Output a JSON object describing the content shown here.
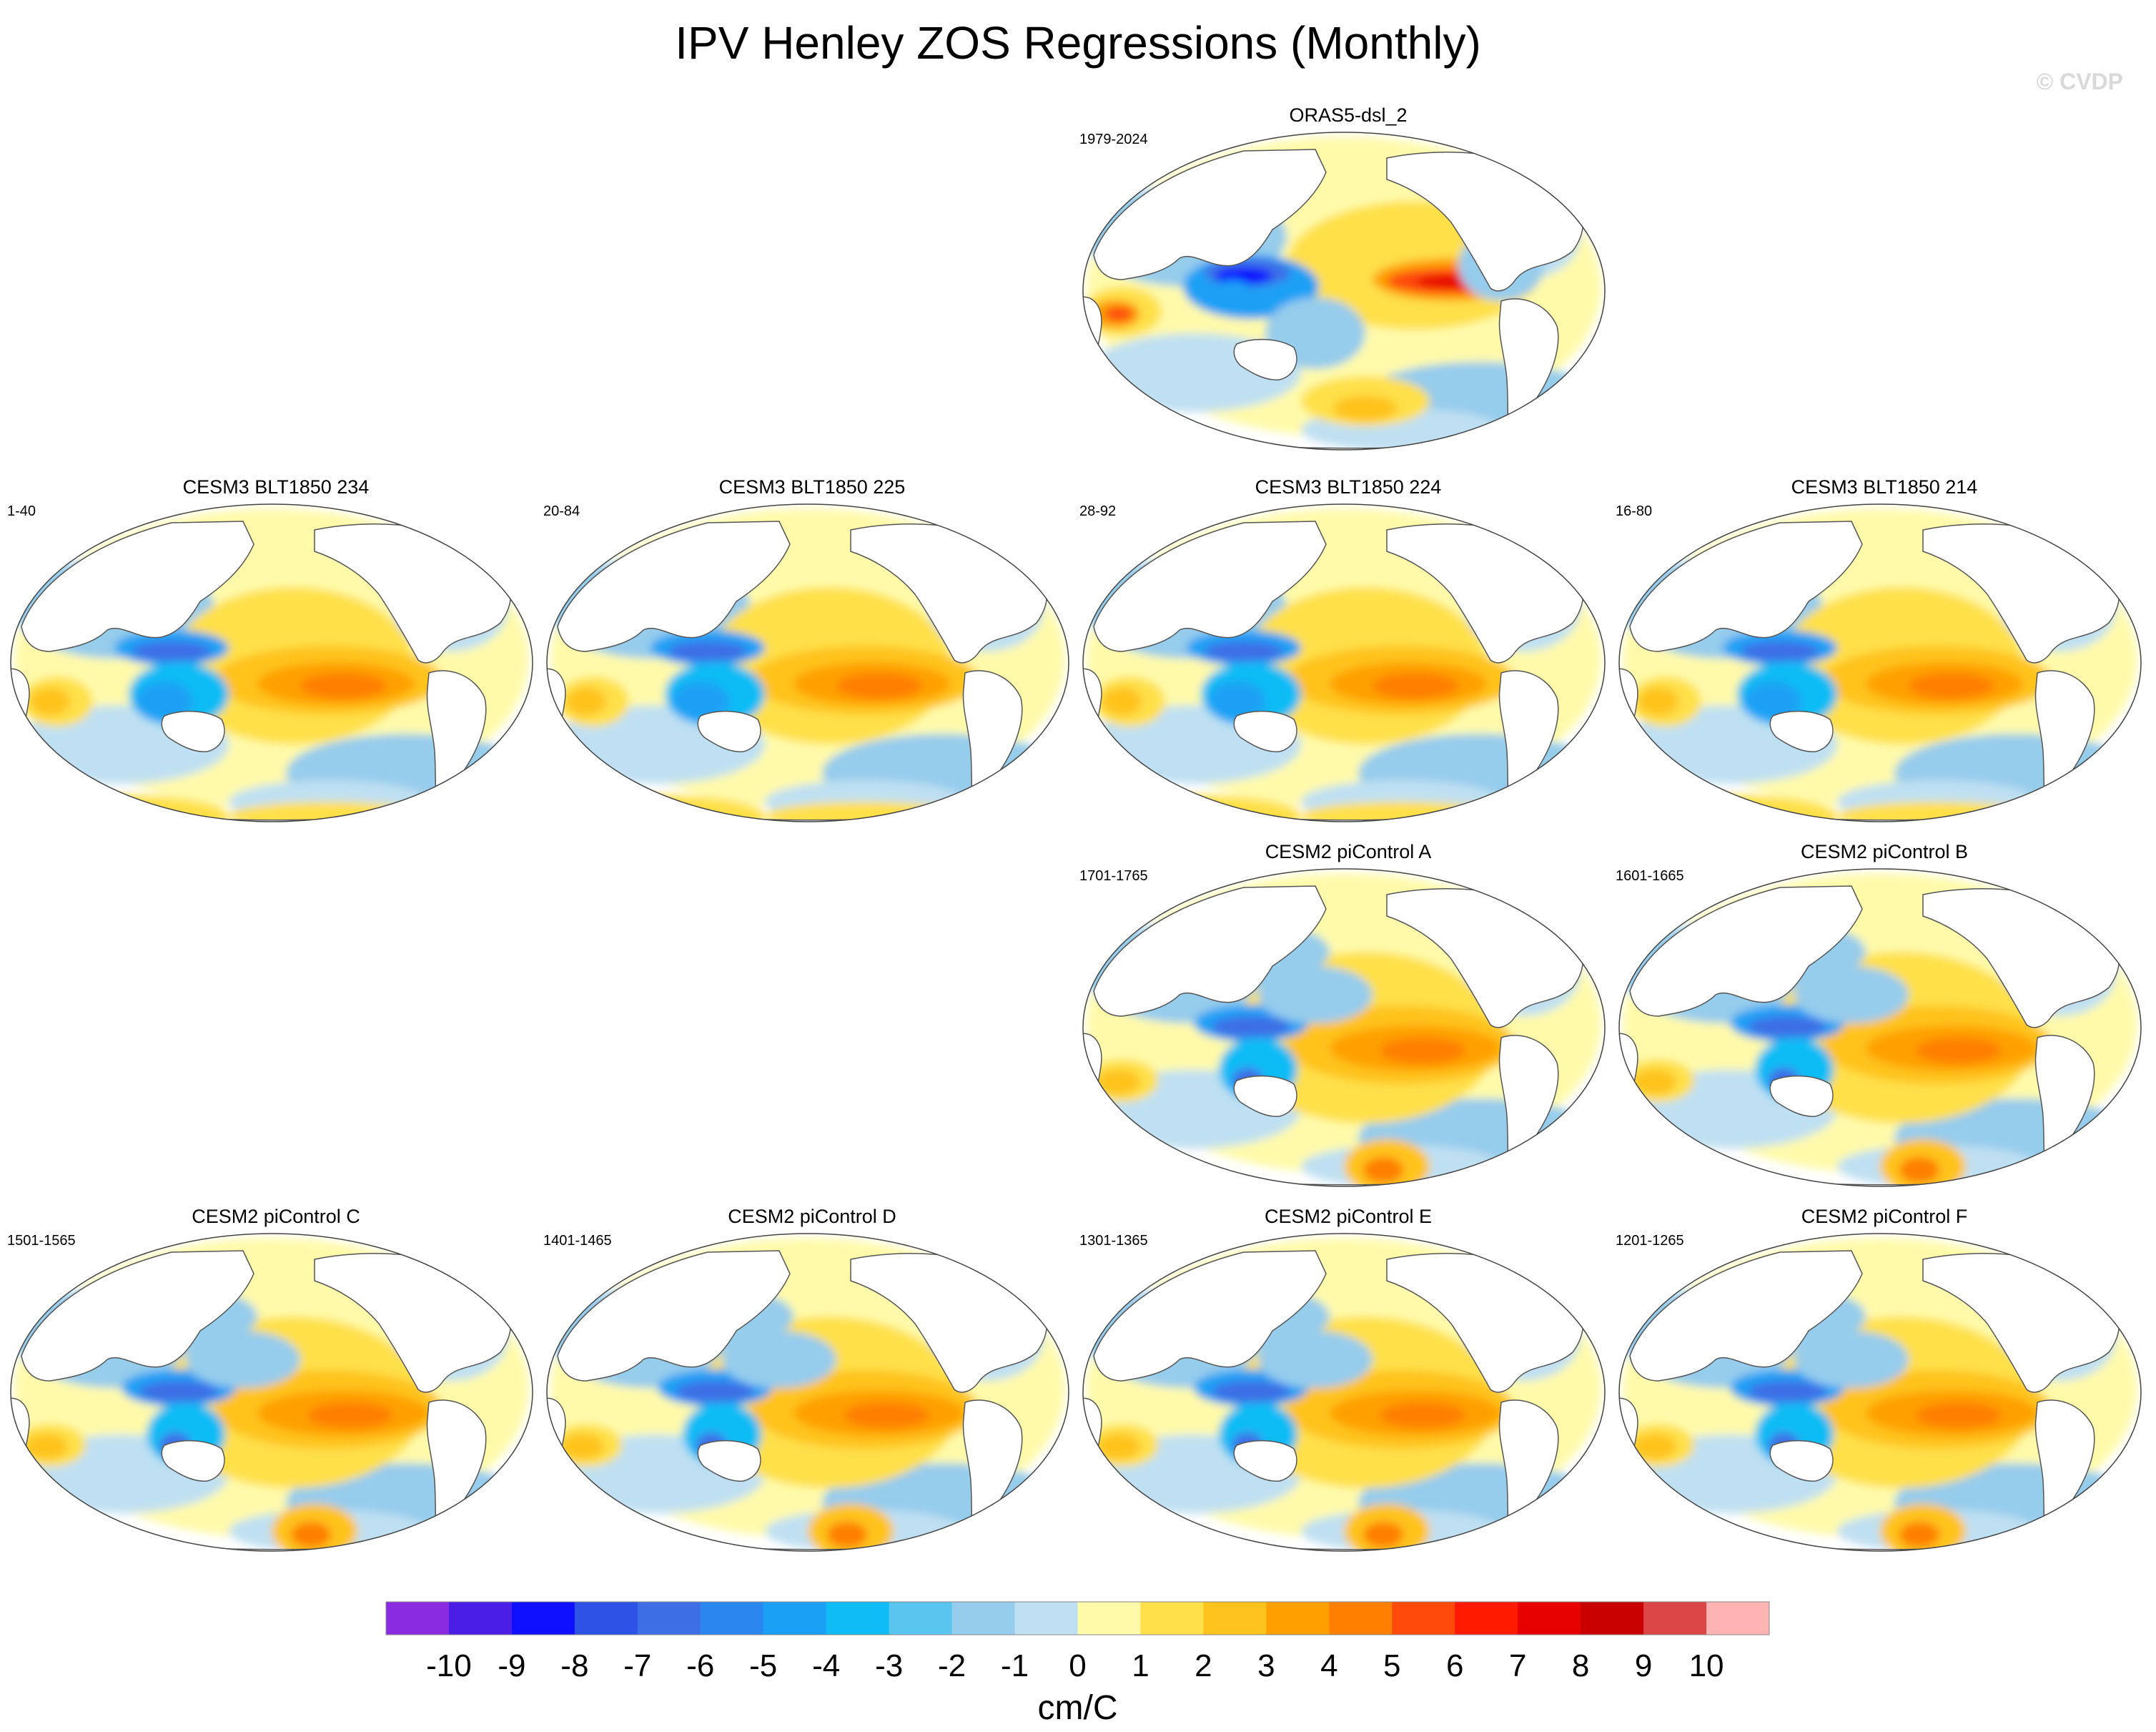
{
  "figure": {
    "title": "IPV Henley ZOS Regressions (Monthly)",
    "watermark": "© CVDP",
    "units": "cm/C"
  },
  "panels": [
    {
      "id": "p0",
      "title": "ORAS5-dsl_2",
      "period": "1979-2024",
      "pattern": "obs"
    },
    {
      "id": "p1",
      "title": "CESM3 BLT1850 234",
      "period": "1-40",
      "pattern": "cesm3"
    },
    {
      "id": "p2",
      "title": "CESM3 BLT1850 225",
      "period": "20-84",
      "pattern": "cesm3"
    },
    {
      "id": "p3",
      "title": "CESM3 BLT1850 224",
      "period": "28-92",
      "pattern": "cesm3"
    },
    {
      "id": "p4",
      "title": "CESM3 BLT1850 214",
      "period": "16-80",
      "pattern": "cesm3"
    },
    {
      "id": "p5",
      "title": "CESM2 piControl A",
      "period": "1701-1765",
      "pattern": "cesm2"
    },
    {
      "id": "p6",
      "title": "CESM2 piControl B",
      "period": "1601-1665",
      "pattern": "cesm2"
    },
    {
      "id": "p7",
      "title": "CESM2 piControl C",
      "period": "1501-1565",
      "pattern": "cesm2"
    },
    {
      "id": "p8",
      "title": "CESM2 piControl D",
      "period": "1401-1465",
      "pattern": "cesm2"
    },
    {
      "id": "p9",
      "title": "CESM2 piControl E",
      "period": "1301-1365",
      "pattern": "cesm2"
    },
    {
      "id": "p10",
      "title": "CESM2 piControl F",
      "period": "1201-1265",
      "pattern": "cesm2"
    }
  ],
  "colorbar": {
    "tick_labels": [
      "-10",
      "-9",
      "-8",
      "-7",
      "-6",
      "-5",
      "-4",
      "-3",
      "-2",
      "-1",
      "0",
      "1",
      "2",
      "3",
      "4",
      "5",
      "6",
      "7",
      "8",
      "9",
      "10"
    ],
    "colors": [
      "#8a2be2",
      "#4b1ee8",
      "#0f0fff",
      "#2e52e6",
      "#3d6ee6",
      "#2c86f0",
      "#1aa0f5",
      "#10bcf5",
      "#5ac6f0",
      "#96ccec",
      "#bfe0f2",
      "#fffaaa",
      "#ffe04a",
      "#ffc31e",
      "#ffa000",
      "#ff7f00",
      "#ff4a0a",
      "#ff1a00",
      "#e60000",
      "#c80000",
      "#dc4646",
      "#ffb4b4"
    ]
  },
  "legend_colors": {
    "land": "#ffffff",
    "coastline": "#555555",
    "background": "#ffffff"
  }
}
